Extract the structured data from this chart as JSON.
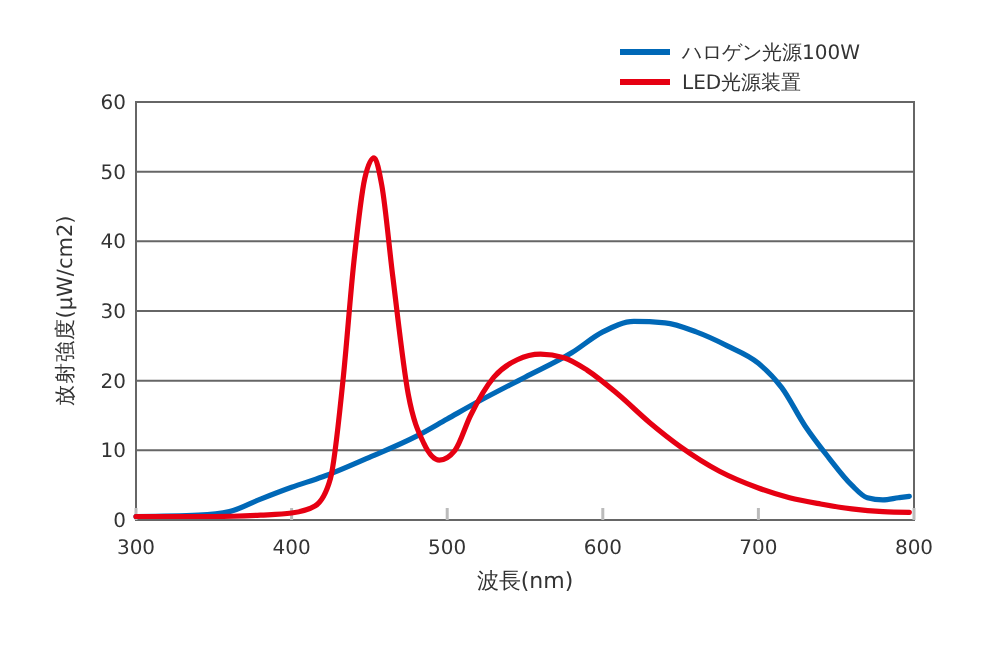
{
  "chart_data": {
    "type": "line",
    "xlabel": "波長(nm)",
    "ylabel": "放射強度(μW/cm2)",
    "xlim": [
      300,
      800
    ],
    "xticks": [
      300,
      400,
      500,
      600,
      700,
      800
    ],
    "ylim": [
      0,
      60
    ],
    "yticks": [
      0,
      10,
      20,
      30,
      40,
      50,
      60
    ],
    "grid": "y",
    "legend": "top right",
    "marker": "none",
    "line_style": "solid",
    "series": [
      {
        "name": "ハロゲン光源100W",
        "color": "#0068b7",
        "x": [
          300,
          340,
          360,
          380,
          400,
          420,
          450,
          480,
          500,
          520,
          550,
          580,
          600,
          620,
          640,
          660,
          680,
          700,
          715,
          730,
          745,
          760,
          770,
          780,
          790,
          797
        ],
        "values": [
          0.5,
          0.7,
          1.2,
          3,
          4.7,
          6.2,
          9,
          12,
          14.5,
          17,
          20.5,
          24,
          27,
          28.5,
          28.3,
          27,
          25,
          22.5,
          19,
          13.5,
          9,
          5,
          3.2,
          2.9,
          3.2,
          3.4
        ]
      },
      {
        "name": "LED光源装置",
        "color": "#e60012",
        "x": [
          300,
          350,
          380,
          400,
          415,
          425,
          433,
          440,
          447,
          453,
          458,
          465,
          475,
          485,
          495,
          505,
          515,
          530,
          545,
          560,
          575,
          590,
          610,
          630,
          650,
          675,
          700,
          720,
          740,
          760,
          780,
          797
        ],
        "values": [
          0.5,
          0.5,
          0.7,
          1,
          2,
          6,
          20,
          37,
          49,
          52,
          48,
          35,
          18,
          11,
          8.6,
          10,
          15,
          20.5,
          23,
          23.8,
          23.3,
          21.5,
          18,
          14,
          10.5,
          7,
          4.6,
          3.2,
          2.3,
          1.6,
          1.2,
          1.1
        ]
      }
    ]
  }
}
